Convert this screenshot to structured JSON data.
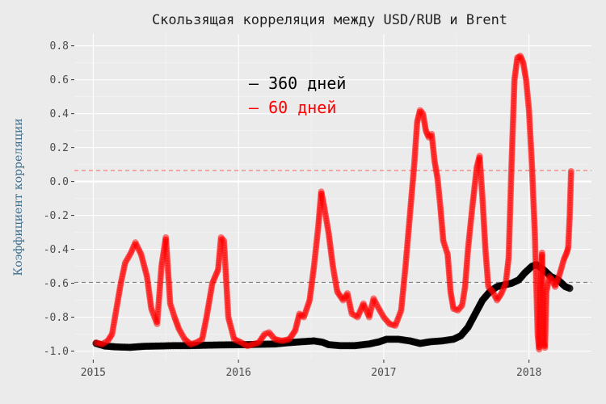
{
  "chart_data": {
    "type": "scatter",
    "title": "Скользящая корреляция между USD/RUB и Brent",
    "xlabel": "",
    "ylabel": "Коэффициент корреляции",
    "xlim": [
      2014.87,
      2018.43
    ],
    "ylim": [
      -1.05,
      0.87
    ],
    "x_ticks": [
      2015,
      2016,
      2017,
      2018
    ],
    "y_ticks": [
      -1.0,
      -0.8,
      -0.6,
      -0.4,
      -0.2,
      0.0,
      0.2,
      0.4,
      0.6,
      0.8
    ],
    "y_tick_labels": [
      "-1.0",
      "-0.8",
      "-0.6",
      "-0.4",
      "-0.2",
      "0.0",
      "0.2",
      "0.4",
      "0.6",
      "0.8"
    ],
    "grid": true,
    "legend": {
      "placement": "top-center",
      "entries": [
        {
          "label": "– 360 дней",
          "color": "#000000"
        },
        {
          "label": "– 60 дней",
          "color": "#ff0000"
        }
      ]
    },
    "reference_lines": [
      {
        "y": 0.0,
        "style": "solid",
        "color": "#ffffff"
      },
      {
        "y": 0.065,
        "style": "dashed",
        "color": "#f08080"
      },
      {
        "y": -0.595,
        "style": "dashed",
        "color": "#7f7f7f"
      }
    ],
    "series": [
      {
        "name": "360 дней",
        "color": "#000000",
        "points": [
          [
            2015.02,
            -0.955
          ],
          [
            2015.08,
            -0.97
          ],
          [
            2015.15,
            -0.975
          ],
          [
            2015.25,
            -0.978
          ],
          [
            2015.35,
            -0.972
          ],
          [
            2015.45,
            -0.97
          ],
          [
            2015.55,
            -0.968
          ],
          [
            2015.65,
            -0.968
          ],
          [
            2015.75,
            -0.966
          ],
          [
            2015.85,
            -0.964
          ],
          [
            2015.95,
            -0.963
          ],
          [
            2016.05,
            -0.962
          ],
          [
            2016.15,
            -0.96
          ],
          [
            2016.25,
            -0.958
          ],
          [
            2016.35,
            -0.95
          ],
          [
            2016.45,
            -0.944
          ],
          [
            2016.52,
            -0.94
          ],
          [
            2016.58,
            -0.948
          ],
          [
            2016.62,
            -0.962
          ],
          [
            2016.7,
            -0.968
          ],
          [
            2016.8,
            -0.968
          ],
          [
            2016.9,
            -0.958
          ],
          [
            2016.97,
            -0.945
          ],
          [
            2017.02,
            -0.93
          ],
          [
            2017.1,
            -0.93
          ],
          [
            2017.18,
            -0.94
          ],
          [
            2017.25,
            -0.955
          ],
          [
            2017.32,
            -0.945
          ],
          [
            2017.4,
            -0.94
          ],
          [
            2017.48,
            -0.93
          ],
          [
            2017.53,
            -0.91
          ],
          [
            2017.58,
            -0.86
          ],
          [
            2017.63,
            -0.78
          ],
          [
            2017.68,
            -0.7
          ],
          [
            2017.73,
            -0.65
          ],
          [
            2017.78,
            -0.62
          ],
          [
            2017.83,
            -0.61
          ],
          [
            2017.88,
            -0.6
          ],
          [
            2017.93,
            -0.58
          ],
          [
            2017.97,
            -0.54
          ],
          [
            2018.02,
            -0.5
          ],
          [
            2018.05,
            -0.49
          ],
          [
            2018.1,
            -0.52
          ],
          [
            2018.15,
            -0.56
          ],
          [
            2018.2,
            -0.58
          ],
          [
            2018.25,
            -0.62
          ],
          [
            2018.28,
            -0.63
          ]
        ]
      },
      {
        "name": "60 дней",
        "color": "#ff0000",
        "points": [
          [
            2015.02,
            -0.95
          ],
          [
            2015.06,
            -0.96
          ],
          [
            2015.1,
            -0.94
          ],
          [
            2015.13,
            -0.9
          ],
          [
            2015.16,
            -0.75
          ],
          [
            2015.19,
            -0.6
          ],
          [
            2015.22,
            -0.48
          ],
          [
            2015.26,
            -0.42
          ],
          [
            2015.29,
            -0.36
          ],
          [
            2015.33,
            -0.43
          ],
          [
            2015.37,
            -0.56
          ],
          [
            2015.4,
            -0.75
          ],
          [
            2015.44,
            -0.84
          ],
          [
            2015.47,
            -0.5
          ],
          [
            2015.5,
            -0.33
          ],
          [
            2015.53,
            -0.72
          ],
          [
            2015.56,
            -0.8
          ],
          [
            2015.59,
            -0.87
          ],
          [
            2015.63,
            -0.93
          ],
          [
            2015.67,
            -0.96
          ],
          [
            2015.71,
            -0.95
          ],
          [
            2015.75,
            -0.93
          ],
          [
            2015.78,
            -0.8
          ],
          [
            2015.82,
            -0.6
          ],
          [
            2015.86,
            -0.52
          ],
          [
            2015.88,
            -0.33
          ],
          [
            2015.9,
            -0.35
          ],
          [
            2015.93,
            -0.8
          ],
          [
            2015.97,
            -0.93
          ],
          [
            2016.02,
            -0.95
          ],
          [
            2016.06,
            -0.97
          ],
          [
            2016.1,
            -0.96
          ],
          [
            2016.14,
            -0.95
          ],
          [
            2016.18,
            -0.9
          ],
          [
            2016.21,
            -0.89
          ],
          [
            2016.25,
            -0.93
          ],
          [
            2016.3,
            -0.94
          ],
          [
            2016.35,
            -0.93
          ],
          [
            2016.39,
            -0.88
          ],
          [
            2016.42,
            -0.78
          ],
          [
            2016.45,
            -0.8
          ],
          [
            2016.49,
            -0.7
          ],
          [
            2016.52,
            -0.5
          ],
          [
            2016.55,
            -0.26
          ],
          [
            2016.57,
            -0.06
          ],
          [
            2016.59,
            -0.15
          ],
          [
            2016.62,
            -0.3
          ],
          [
            2016.65,
            -0.5
          ],
          [
            2016.68,
            -0.65
          ],
          [
            2016.72,
            -0.7
          ],
          [
            2016.75,
            -0.66
          ],
          [
            2016.78,
            -0.78
          ],
          [
            2016.82,
            -0.8
          ],
          [
            2016.86,
            -0.72
          ],
          [
            2016.9,
            -0.8
          ],
          [
            2016.93,
            -0.69
          ],
          [
            2016.96,
            -0.74
          ],
          [
            2017.0,
            -0.8
          ],
          [
            2017.04,
            -0.84
          ],
          [
            2017.08,
            -0.85
          ],
          [
            2017.12,
            -0.76
          ],
          [
            2017.15,
            -0.5
          ],
          [
            2017.18,
            -0.2
          ],
          [
            2017.21,
            0.1
          ],
          [
            2017.23,
            0.35
          ],
          [
            2017.25,
            0.42
          ],
          [
            2017.27,
            0.4
          ],
          [
            2017.29,
            0.3
          ],
          [
            2017.31,
            0.26
          ],
          [
            2017.33,
            0.28
          ],
          [
            2017.35,
            0.12
          ],
          [
            2017.37,
            0.02
          ],
          [
            2017.39,
            -0.15
          ],
          [
            2017.41,
            -0.35
          ],
          [
            2017.44,
            -0.43
          ],
          [
            2017.46,
            -0.65
          ],
          [
            2017.48,
            -0.75
          ],
          [
            2017.51,
            -0.76
          ],
          [
            2017.54,
            -0.73
          ],
          [
            2017.56,
            -0.62
          ],
          [
            2017.58,
            -0.4
          ],
          [
            2017.61,
            -0.15
          ],
          [
            2017.64,
            0.08
          ],
          [
            2017.66,
            0.15
          ],
          [
            2017.68,
            -0.1
          ],
          [
            2017.7,
            -0.4
          ],
          [
            2017.72,
            -0.62
          ],
          [
            2017.75,
            -0.65
          ],
          [
            2017.78,
            -0.7
          ],
          [
            2017.81,
            -0.66
          ],
          [
            2017.84,
            -0.6
          ],
          [
            2017.86,
            -0.45
          ],
          [
            2017.88,
            0.1
          ],
          [
            2017.9,
            0.6
          ],
          [
            2017.92,
            0.73
          ],
          [
            2017.94,
            0.74
          ],
          [
            2017.96,
            0.7
          ],
          [
            2017.98,
            0.6
          ],
          [
            2018.0,
            0.42
          ],
          [
            2018.02,
            0.1
          ],
          [
            2018.04,
            -0.3
          ],
          [
            2018.05,
            -0.6
          ],
          [
            2018.06,
            -0.9
          ],
          [
            2018.07,
            -0.99
          ],
          [
            2018.08,
            -0.6
          ],
          [
            2018.09,
            -0.42
          ],
          [
            2018.1,
            -0.95
          ],
          [
            2018.11,
            -0.98
          ],
          [
            2018.12,
            -0.65
          ],
          [
            2018.14,
            -0.56
          ],
          [
            2018.16,
            -0.58
          ],
          [
            2018.18,
            -0.62
          ],
          [
            2018.21,
            -0.55
          ],
          [
            2018.24,
            -0.46
          ],
          [
            2018.26,
            -0.42
          ],
          [
            2018.27,
            -0.39
          ],
          [
            2018.28,
            -0.21
          ],
          [
            2018.29,
            0.06
          ]
        ]
      }
    ]
  }
}
